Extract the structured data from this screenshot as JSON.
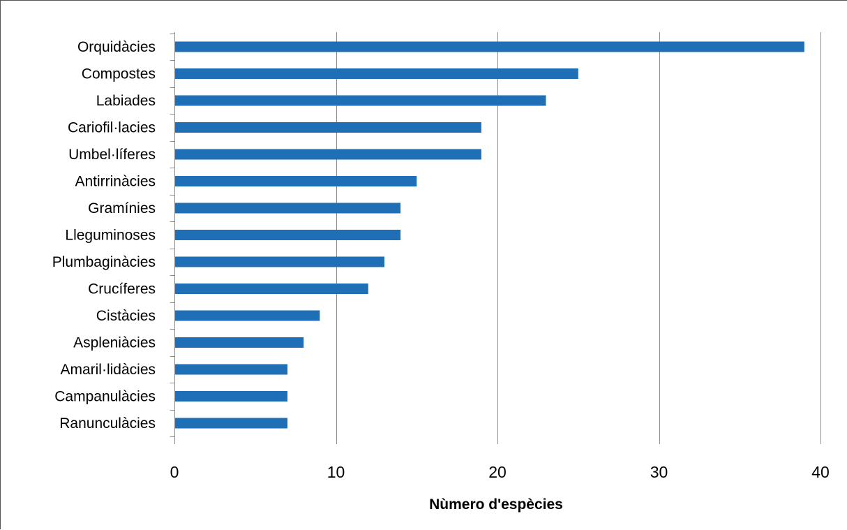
{
  "colors": {
    "bar": "#1f6fb6",
    "gridline": "#8c8c8c",
    "axis": "#8c8c8c"
  },
  "chart_data": {
    "type": "bar",
    "orientation": "horizontal",
    "title": "",
    "xlabel": "Nùmero d'espècies",
    "ylabel": "",
    "xlim": [
      0,
      40
    ],
    "xticks": [
      "0",
      "10",
      "20",
      "30",
      "40"
    ],
    "grid": "vertical",
    "legend": "none",
    "categories": [
      "Orquidàcies",
      "Compostes",
      "Labiades",
      "Cariofil·lacies",
      "Umbel·líferes",
      "Antirrinàcies",
      "Gramínies",
      "Lleguminoses",
      "Plumbaginàcies",
      "Crucíferes",
      "Cistàcies",
      "Aspleniàcies",
      "Amaril·lidàcies",
      "Campanulàcies",
      "Ranunculàcies"
    ],
    "values": [
      39,
      25,
      23,
      19,
      19,
      15,
      14,
      14,
      13,
      12,
      9,
      8,
      7,
      7,
      7
    ]
  }
}
